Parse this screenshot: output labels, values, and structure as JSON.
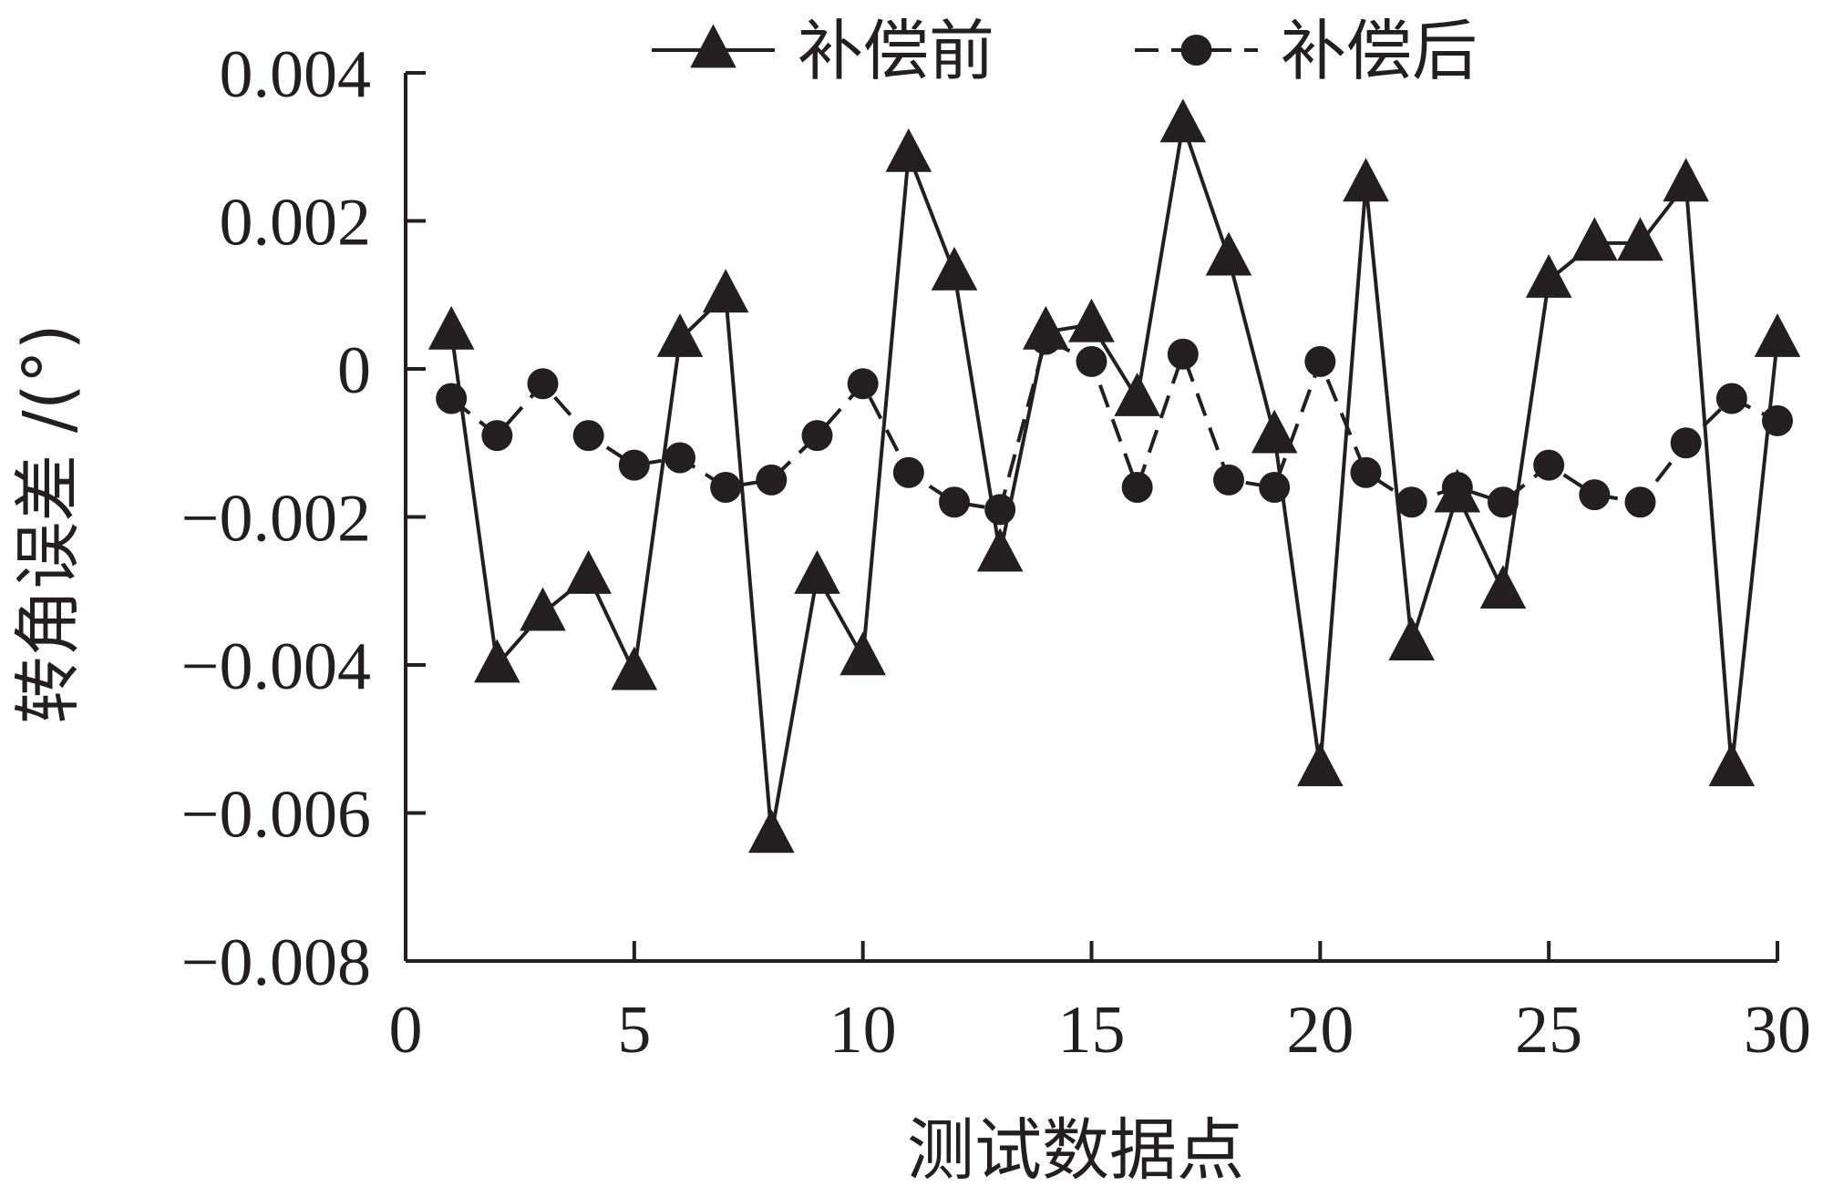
{
  "chart_data": {
    "type": "line",
    "title": "",
    "xlabel": "测试数据点",
    "ylabel": "转角误差 /(°)",
    "xlim": [
      0,
      30
    ],
    "ylim": [
      -0.008,
      0.004
    ],
    "x_ticks": [
      0,
      5,
      10,
      15,
      20,
      25,
      30
    ],
    "x_tick_labels": [
      "0",
      "5",
      "10",
      "15",
      "20",
      "25",
      "30"
    ],
    "y_ticks": [
      0.004,
      0.002,
      0,
      -0.002,
      -0.004,
      -0.006,
      -0.008
    ],
    "y_tick_labels": [
      "0.004",
      "0.002",
      "0",
      "−0.002",
      "−0.004",
      "−0.006",
      "−0.008"
    ],
    "grid": false,
    "legend_position": "top",
    "x": [
      1,
      2,
      3,
      4,
      5,
      6,
      7,
      8,
      9,
      10,
      11,
      12,
      13,
      14,
      15,
      16,
      17,
      18,
      19,
      20,
      21,
      22,
      23,
      24,
      25,
      26,
      27,
      28,
      29,
      30
    ],
    "series": [
      {
        "name": "补偿前",
        "marker": "triangle",
        "line_style": "solid",
        "color": "#231f20",
        "values": [
          0.0005,
          -0.004,
          -0.0033,
          -0.0028,
          -0.0041,
          0.0004,
          0.001,
          -0.0063,
          -0.0028,
          -0.0039,
          0.0029,
          0.0013,
          -0.0025,
          0.0005,
          0.0006,
          -0.0004,
          0.0033,
          0.0015,
          -0.0009,
          -0.0054,
          0.0025,
          -0.0037,
          -0.0017,
          -0.003,
          0.0012,
          0.0017,
          0.0017,
          0.0025,
          -0.0054,
          0.0004
        ]
      },
      {
        "name": "补偿后",
        "marker": "circle",
        "line_style": "dashed",
        "color": "#231f20",
        "values": [
          -0.0004,
          -0.0009,
          -0.0002,
          -0.0009,
          -0.0013,
          -0.0012,
          -0.0016,
          -0.0015,
          -0.0009,
          -0.0002,
          -0.0014,
          -0.0018,
          -0.0019,
          0.0004,
          0.0001,
          -0.0016,
          0.0002,
          -0.0015,
          -0.0016,
          0.0001,
          -0.0014,
          -0.0018,
          -0.0016,
          -0.0018,
          -0.0013,
          -0.0017,
          -0.0018,
          -0.001,
          -0.0004,
          -0.0007
        ]
      }
    ]
  }
}
